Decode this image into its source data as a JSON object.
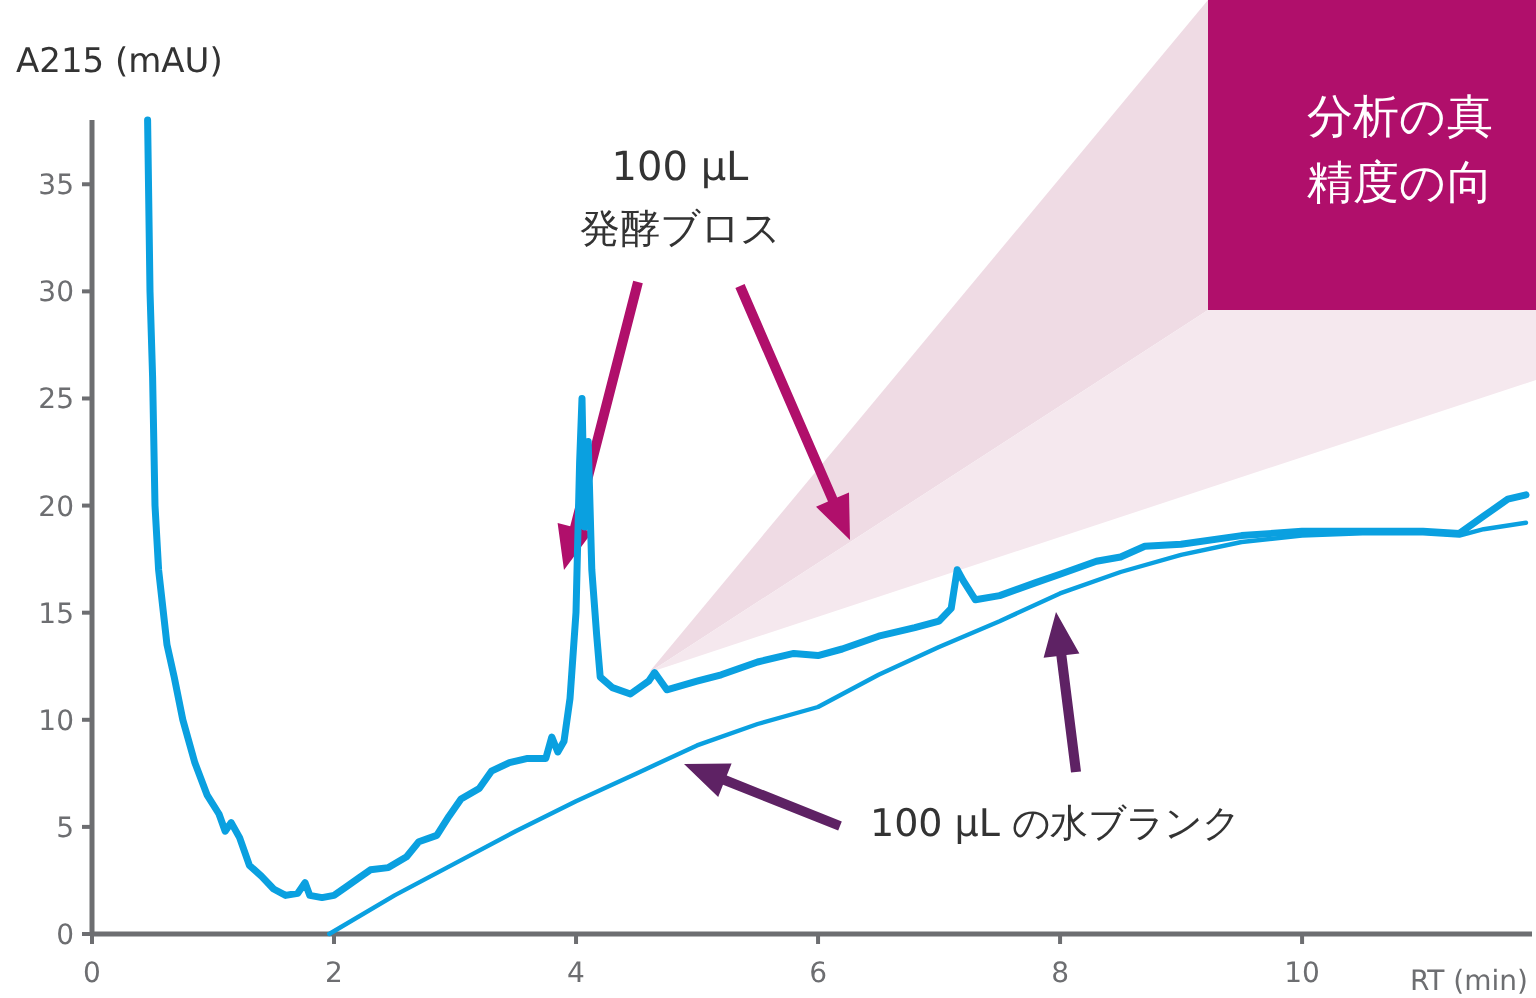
{
  "chart_data": {
    "type": "line",
    "xlabel": "RT (min)",
    "ylabel": "A215 (mAU)",
    "xlim": [
      0,
      11.9
    ],
    "ylim": [
      0,
      38
    ],
    "xticks": [
      0,
      2,
      4,
      6,
      8,
      10
    ],
    "yticks": [
      0,
      5,
      10,
      15,
      20,
      25,
      30,
      35
    ],
    "grid": false,
    "marker": "none",
    "line_style": "solid",
    "series": [
      {
        "color": "#0aa0e0",
        "x": [
          0.46,
          0.48,
          0.5,
          0.52,
          0.55,
          0.58,
          0.62,
          0.68,
          0.75,
          0.85,
          0.95,
          1.05,
          1.1,
          1.15,
          1.22,
          1.3,
          1.4,
          1.5,
          1.6,
          1.7,
          1.76,
          1.8,
          1.9,
          2.0,
          2.1,
          2.2,
          2.3,
          2.45,
          2.6,
          2.7,
          2.85,
          2.95,
          3.05,
          3.2,
          3.3,
          3.45,
          3.6,
          3.75,
          3.8,
          3.85,
          3.9,
          3.95,
          4.0,
          4.03,
          4.05,
          4.07,
          4.1,
          4.13,
          4.17,
          4.2,
          4.3,
          4.45,
          4.6,
          4.65,
          4.75,
          5.0,
          5.2,
          5.5,
          5.8,
          6.0,
          6.2,
          6.5,
          6.8,
          7.0,
          7.1,
          7.15,
          7.2,
          7.3,
          7.5,
          7.8,
          8.0,
          8.3,
          8.5,
          8.7,
          9.0,
          9.5,
          10.0,
          10.5,
          11.0,
          11.3,
          11.5,
          11.7,
          11.85
        ],
        "values": [
          38,
          30,
          26,
          20,
          17,
          15.5,
          13.5,
          12,
          10,
          8,
          6.5,
          5.6,
          4.8,
          5.2,
          4.5,
          3.2,
          2.7,
          2.1,
          1.8,
          1.9,
          2.4,
          1.8,
          1.7,
          1.8,
          2.2,
          2.6,
          3.0,
          3.1,
          3.6,
          4.3,
          4.6,
          5.5,
          6.3,
          6.8,
          7.6,
          8.0,
          8.2,
          8.2,
          9.2,
          8.5,
          9,
          11,
          15,
          22,
          25,
          19,
          23,
          17,
          14,
          12,
          11.5,
          11.2,
          11.8,
          12.2,
          11.4,
          11.8,
          12.1,
          12.7,
          13.1,
          13.0,
          13.3,
          13.9,
          14.3,
          14.6,
          15.2,
          17.0,
          16.5,
          15.6,
          15.8,
          16.4,
          16.8,
          17.4,
          17.6,
          18.1,
          18.2,
          18.6,
          18.8,
          18.8,
          18.8,
          18.7,
          19.5,
          20.3,
          20.5
        ]
      },
      {
        "color": "#0aa0e0",
        "x": [
          1.96,
          2.5,
          3.0,
          3.5,
          4.0,
          4.5,
          5.0,
          5.5,
          6.0,
          6.5,
          7.0,
          7.5,
          8.0,
          8.5,
          9.0,
          9.5,
          10.0,
          10.5,
          11.0,
          11.3,
          11.5,
          11.85
        ],
        "values": [
          0,
          1.8,
          3.3,
          4.8,
          6.2,
          7.5,
          8.8,
          9.8,
          10.6,
          12.1,
          13.4,
          14.6,
          15.9,
          16.9,
          17.7,
          18.3,
          18.6,
          18.7,
          18.7,
          18.6,
          18.9,
          19.2
        ]
      }
    ],
    "annotations": [
      "100 µL\n発酵ブロス",
      "100 µL の水ブランク",
      "分析の真",
      "精度の向"
    ]
  }
}
